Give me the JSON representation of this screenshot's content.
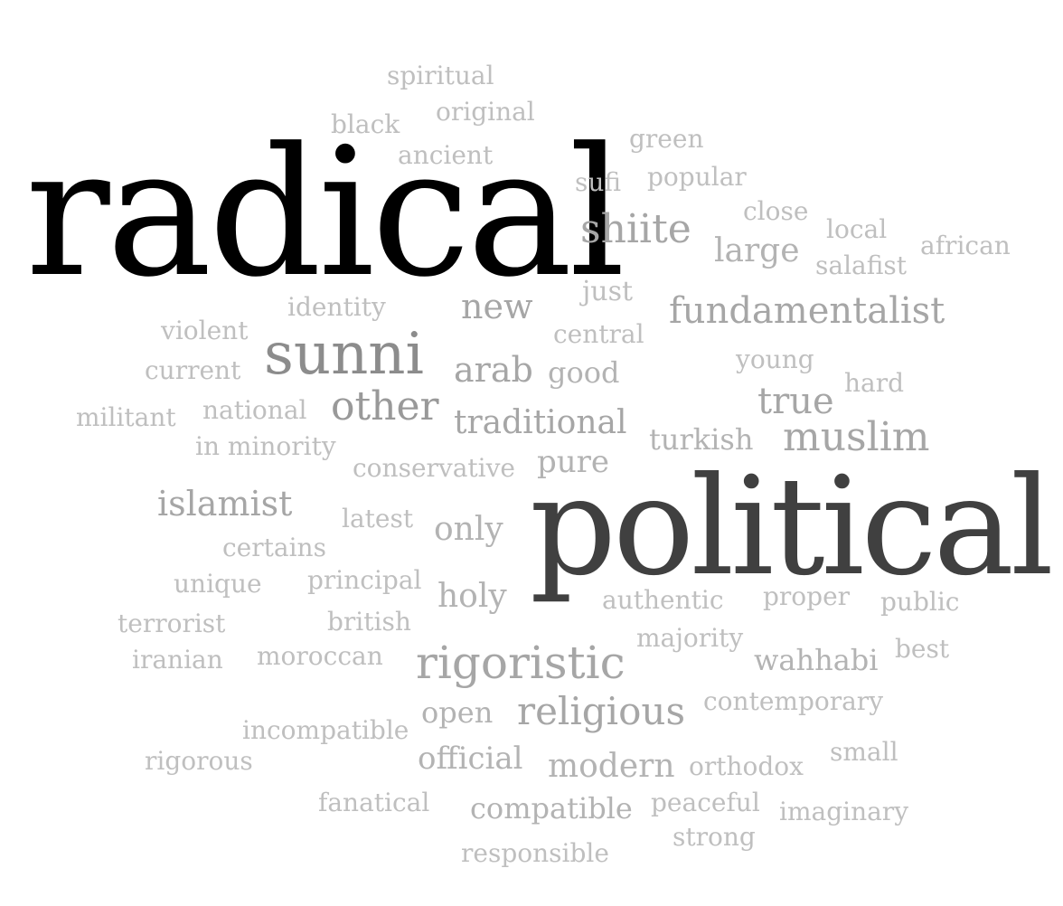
{
  "words": [
    {
      "id": "radical",
      "text": "radical",
      "color": "#000000"
    },
    {
      "id": "political",
      "text": "political",
      "color": "#404040"
    },
    {
      "id": "sunni",
      "text": "sunni",
      "color": "#8c8c8c"
    },
    {
      "id": "shiite",
      "text": "shiite",
      "color": "#a6a6a6"
    },
    {
      "id": "fundamentalist",
      "text": "fundamentalist",
      "color": "#a6a6a6"
    },
    {
      "id": "other",
      "text": "other",
      "color": "#999999"
    },
    {
      "id": "rigoristic",
      "text": "rigoristic",
      "color": "#a6a6a6"
    },
    {
      "id": "muslim",
      "text": "muslim",
      "color": "#a6a6a6"
    },
    {
      "id": "religious",
      "text": "religious",
      "color": "#a6a6a6"
    },
    {
      "id": "true",
      "text": "true",
      "color": "#a6a6a6"
    },
    {
      "id": "traditional",
      "text": "traditional",
      "color": "#a6a6a6"
    },
    {
      "id": "new",
      "text": "new",
      "color": "#a6a6a6"
    },
    {
      "id": "arab",
      "text": "arab",
      "color": "#a6a6a6"
    },
    {
      "id": "islamist",
      "text": "islamist",
      "color": "#a6a6a6"
    },
    {
      "id": "large",
      "text": "large",
      "color": "#b3b3b3"
    },
    {
      "id": "modern",
      "text": "modern",
      "color": "#b3b3b3"
    },
    {
      "id": "only",
      "text": "only",
      "color": "#b3b3b3"
    },
    {
      "id": "holy",
      "text": "holy",
      "color": "#b3b3b3"
    },
    {
      "id": "official",
      "text": "official",
      "color": "#b3b3b3"
    },
    {
      "id": "compatible",
      "text": "compatible",
      "color": "#b3b3b3"
    },
    {
      "id": "pure",
      "text": "pure",
      "color": "#b3b3b3"
    },
    {
      "id": "open",
      "text": "open",
      "color": "#b3b3b3"
    },
    {
      "id": "wahhabi",
      "text": "wahhabi",
      "color": "#b3b3b3"
    },
    {
      "id": "good",
      "text": "good",
      "color": "#b3b3b3"
    },
    {
      "id": "turkish",
      "text": "turkish",
      "color": "#b3b3b3"
    },
    {
      "id": "just",
      "text": "just",
      "color": "#bfbfbf"
    },
    {
      "id": "central",
      "text": "central",
      "color": "#bfbfbf"
    },
    {
      "id": "authentic",
      "text": "authentic",
      "color": "#bfbfbf"
    },
    {
      "id": "contemporary",
      "text": "contemporary",
      "color": "#bfbfbf"
    },
    {
      "id": "orthodox",
      "text": "orthodox",
      "color": "#bfbfbf"
    },
    {
      "id": "conservative",
      "text": "conservative",
      "color": "#bfbfbf"
    },
    {
      "id": "latest",
      "text": "latest",
      "color": "#bfbfbf"
    },
    {
      "id": "peaceful",
      "text": "peaceful",
      "color": "#bfbfbf"
    },
    {
      "id": "imaginary",
      "text": "imaginary",
      "color": "#bfbfbf"
    },
    {
      "id": "strong",
      "text": "strong",
      "color": "#bfbfbf"
    },
    {
      "id": "responsible",
      "text": "responsible",
      "color": "#bfbfbf"
    },
    {
      "id": "proper",
      "text": "proper",
      "color": "#bfbfbf"
    },
    {
      "id": "public",
      "text": "public",
      "color": "#bfbfbf"
    },
    {
      "id": "majority",
      "text": "majority",
      "color": "#bfbfbf"
    },
    {
      "id": "best",
      "text": "best",
      "color": "#bfbfbf"
    },
    {
      "id": "small",
      "text": "small",
      "color": "#bfbfbf"
    },
    {
      "id": "incompatible",
      "text": "incompatible",
      "color": "#bfbfbf"
    },
    {
      "id": "rigorous",
      "text": "rigorous",
      "color": "#bfbfbf"
    },
    {
      "id": "fanatical",
      "text": "fanatical",
      "color": "#bfbfbf"
    },
    {
      "id": "principal",
      "text": "principal",
      "color": "#bfbfbf"
    },
    {
      "id": "certains",
      "text": "certains",
      "color": "#bfbfbf"
    },
    {
      "id": "unique",
      "text": "unique",
      "color": "#bfbfbf"
    },
    {
      "id": "british",
      "text": "british",
      "color": "#bfbfbf"
    },
    {
      "id": "terrorist",
      "text": "terrorist",
      "color": "#bfbfbf"
    },
    {
      "id": "iranian",
      "text": "iranian",
      "color": "#bfbfbf"
    },
    {
      "id": "moroccan",
      "text": "moroccan",
      "color": "#bfbfbf"
    },
    {
      "id": "identity",
      "text": "identity",
      "color": "#bfbfbf"
    },
    {
      "id": "violent",
      "text": "violent",
      "color": "#bfbfbf"
    },
    {
      "id": "current",
      "text": "current",
      "color": "#bfbfbf"
    },
    {
      "id": "militant",
      "text": "militant",
      "color": "#bfbfbf"
    },
    {
      "id": "national",
      "text": "national",
      "color": "#bfbfbf"
    },
    {
      "id": "in-minority",
      "text": "in minority",
      "color": "#bfbfbf"
    },
    {
      "id": "young",
      "text": "young",
      "color": "#bfbfbf"
    },
    {
      "id": "hard",
      "text": "hard",
      "color": "#bfbfbf"
    },
    {
      "id": "spiritual",
      "text": "spiritual",
      "color": "#bfbfbf"
    },
    {
      "id": "original",
      "text": "original",
      "color": "#bfbfbf"
    },
    {
      "id": "black",
      "text": "black",
      "color": "#bfbfbf"
    },
    {
      "id": "ancient",
      "text": "ancient",
      "color": "#bfbfbf"
    },
    {
      "id": "green",
      "text": "green",
      "color": "#bfbfbf"
    },
    {
      "id": "sufi",
      "text": "sufi",
      "color": "#bfbfbf"
    },
    {
      "id": "popular",
      "text": "popular",
      "color": "#bfbfbf"
    },
    {
      "id": "close",
      "text": "close",
      "color": "#bfbfbf"
    },
    {
      "id": "local",
      "text": "local",
      "color": "#bfbfbf"
    },
    {
      "id": "african",
      "text": "african",
      "color": "#bfbfbf"
    },
    {
      "id": "salafist",
      "text": "salafist",
      "color": "#bfbfbf"
    }
  ]
}
